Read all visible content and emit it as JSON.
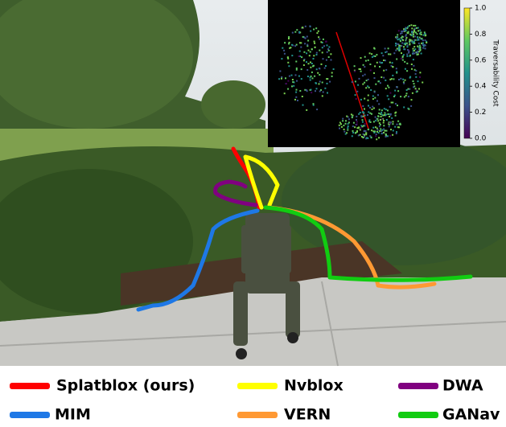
{
  "legend": {
    "items": [
      {
        "label": "Splatblox (ours)",
        "color": "#ff0000"
      },
      {
        "label": "Nvblox",
        "color": "#ffff00"
      },
      {
        "label": "DWA",
        "color": "#800080"
      },
      {
        "label": "MIM",
        "color": "#1e78e6"
      },
      {
        "label": "VERN",
        "color": "#ff9933"
      },
      {
        "label": "GANav",
        "color": "#11cc11"
      }
    ]
  },
  "colorbar": {
    "label": "Traversability Cost",
    "ticks": [
      "0.0",
      "0.2",
      "0.4",
      "0.6",
      "0.8",
      "1.0"
    ]
  }
}
